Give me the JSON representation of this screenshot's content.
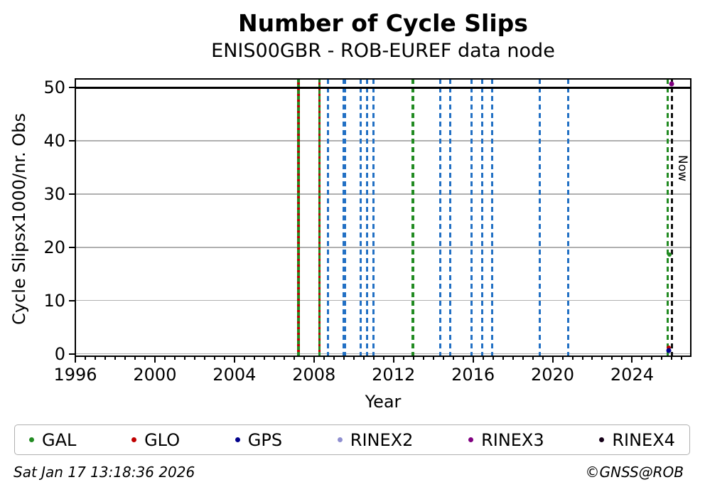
{
  "header": {
    "title": "Number of Cycle Slips",
    "subtitle": "ENIS00GBR - ROB-EUREF data node"
  },
  "footer": {
    "timestamp": "Sat Jan 17 13:18:36 2026",
    "credit": "©GNSS@ROB"
  },
  "colors": {
    "gal_green": "#228b22",
    "glo_red": "#c00000",
    "gps_navy": "#00008b",
    "rinex2_lavender": "#8f8fd0",
    "rinex3_purple": "#800080",
    "rinex4_dark": "#150018",
    "event_blue": "#2270c4",
    "now_black": "#111111",
    "grid_gray": "#b0b0b0",
    "axis_black": "#000000"
  },
  "legend": [
    {
      "label": "GAL",
      "color": "#228b22",
      "icon": "gal-marker-icon"
    },
    {
      "label": "GLO",
      "color": "#c00000",
      "icon": "glo-marker-icon"
    },
    {
      "label": "GPS",
      "color": "#00008b",
      "icon": "gps-marker-icon"
    },
    {
      "label": "RINEX2",
      "color": "#8f8fd0",
      "icon": "rinex2-marker-icon"
    },
    {
      "label": "RINEX3",
      "color": "#800080",
      "icon": "rinex3-marker-icon"
    },
    {
      "label": "RINEX4",
      "color": "#150018",
      "icon": "rinex4-marker-icon"
    }
  ],
  "chart_data": {
    "type": "scatter",
    "title": "Number of Cycle Slips",
    "subtitle": "ENIS00GBR - ROB-EUREF data node",
    "xlabel": "Year",
    "ylabel": "Cycle Slipsx1000/nr. Obs",
    "xlim": [
      1996,
      2026.95
    ],
    "ylim": [
      -0.46,
      51.65
    ],
    "x_major_ticks": [
      1996,
      2000,
      2004,
      2008,
      2012,
      2016,
      2020,
      2024
    ],
    "x_minor_step": 0.5,
    "y_ticks": [
      0,
      10,
      20,
      30,
      40,
      50
    ],
    "y_gridlines": [
      0,
      10,
      20,
      30,
      40
    ],
    "grid": true,
    "legend_position": "bottom",
    "hline": {
      "y": 50,
      "color": "#000000",
      "style": "solid"
    },
    "event_lines": [
      {
        "year": 2007.22,
        "style": "green-red-dashed",
        "width": 3.5
      },
      {
        "year": 2008.28,
        "style": "green-red-dashed",
        "width": 3.5
      },
      {
        "year": 2008.71,
        "style": "blue-dashed",
        "width": 3
      },
      {
        "year": 2009.53,
        "style": "blue-dashed",
        "width": 5
      },
      {
        "year": 2010.35,
        "style": "blue-dashed",
        "width": 3
      },
      {
        "year": 2010.67,
        "style": "blue-dashed",
        "width": 3
      },
      {
        "year": 2010.98,
        "style": "blue-dashed",
        "width": 3
      },
      {
        "year": 2012.97,
        "style": "green-dashed",
        "width": 3.5
      },
      {
        "year": 2014.35,
        "style": "blue-dashed",
        "width": 3
      },
      {
        "year": 2014.87,
        "style": "blue-dashed",
        "width": 3
      },
      {
        "year": 2015.92,
        "style": "blue-dashed",
        "width": 3
      },
      {
        "year": 2016.47,
        "style": "blue-dashed",
        "width": 3
      },
      {
        "year": 2016.97,
        "style": "blue-dashed",
        "width": 3
      },
      {
        "year": 2019.36,
        "style": "blue-dashed",
        "width": 3
      },
      {
        "year": 2020.77,
        "style": "blue-dashed",
        "width": 3
      },
      {
        "year": 2025.79,
        "style": "green-dashed",
        "width": 3.5
      },
      {
        "year": 2026.02,
        "style": "black-dashed",
        "width": 3
      }
    ],
    "points": [
      {
        "series": "RINEX3",
        "year": 2025.97,
        "value": 50.7,
        "clipped": true,
        "size": 7
      },
      {
        "series": "GAL",
        "year": 2025.86,
        "value": 18.7,
        "clipped": false,
        "size": 6
      },
      {
        "series": "GLO",
        "year": 2025.84,
        "value": 1.1,
        "clipped": false,
        "size": 6
      },
      {
        "series": "GPS",
        "year": 2025.84,
        "value": 0.55,
        "clipped": false,
        "size": 7
      }
    ],
    "annotations": [
      {
        "text": "Now",
        "year": 2026.02,
        "value": 20,
        "rotation": 90
      }
    ]
  }
}
